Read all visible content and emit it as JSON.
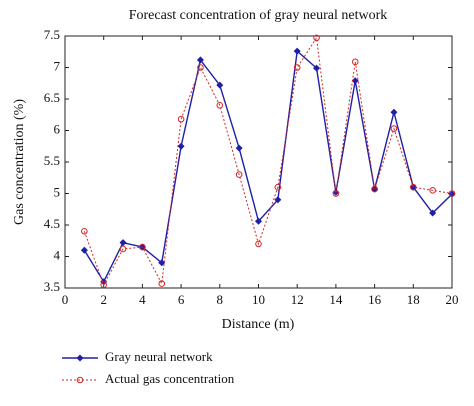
{
  "chart_data": {
    "type": "line",
    "title": "Forecast concentration of gray neural network",
    "xlabel": "Distance (m)",
    "ylabel": "Gas concentration (%)",
    "x": [
      1,
      2,
      3,
      4,
      5,
      6,
      7,
      8,
      9,
      10,
      11,
      12,
      13,
      14,
      15,
      16,
      17,
      18,
      19,
      20
    ],
    "series": [
      {
        "name": "Gray neural network",
        "color": "#1f1fa8",
        "linestyle": "solid",
        "marker": "diamond",
        "values": [
          4.1,
          3.6,
          4.22,
          4.15,
          3.9,
          5.75,
          7.12,
          6.72,
          5.72,
          4.56,
          4.9,
          7.26,
          6.99,
          5.02,
          6.79,
          5.07,
          6.29,
          5.1,
          4.69,
          4.99
        ]
      },
      {
        "name": "Actual gas concentration",
        "color": "#d42525",
        "linestyle": "dotted",
        "marker": "circle",
        "values": [
          4.4,
          3.55,
          4.12,
          4.15,
          3.57,
          6.18,
          7.0,
          6.4,
          5.3,
          4.2,
          5.1,
          7.0,
          7.47,
          5.0,
          7.09,
          5.07,
          6.03,
          5.1,
          5.05,
          5.0
        ]
      }
    ],
    "xlim": [
      0,
      20
    ],
    "xticks": [
      0,
      2,
      4,
      6,
      8,
      10,
      12,
      14,
      16,
      18,
      20
    ],
    "ylim": [
      3.5,
      7.5
    ],
    "yticks": [
      3.5,
      4,
      4.5,
      5,
      5.5,
      6,
      6.5,
      7,
      7.5
    ],
    "legend": "bottom-left"
  }
}
